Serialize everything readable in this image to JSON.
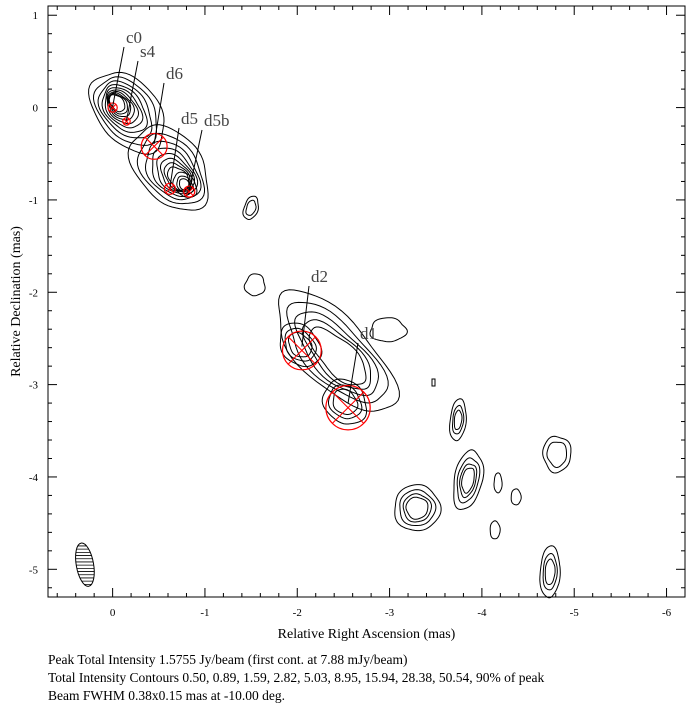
{
  "chart_data": {
    "type": "contour",
    "title": "",
    "xlabel": "Relative Right Ascension (mas)",
    "ylabel": "Relative Declination (mas)",
    "xlim": [
      0.7,
      -6.2
    ],
    "ylim": [
      -5.3,
      1.1
    ],
    "x_ticks": [
      0,
      -1,
      -2,
      -3,
      -4,
      -5,
      -6
    ],
    "y_ticks": [
      1,
      0,
      -1,
      -2,
      -3,
      -4,
      -5
    ],
    "components": [
      {
        "label": "c0",
        "x": 0.0,
        "y": 0.0,
        "r": 0.05
      },
      {
        "label": "s4",
        "x": -0.15,
        "y": -0.15,
        "r": 0.04
      },
      {
        "label": "d6",
        "x": -0.45,
        "y": -0.42,
        "r": 0.14
      },
      {
        "label": "d5",
        "x": -0.62,
        "y": -0.88,
        "r": 0.06
      },
      {
        "label": "d5b",
        "x": -0.83,
        "y": -0.91,
        "r": 0.06
      },
      {
        "label": "d2",
        "x": -2.05,
        "y": -2.63,
        "r": 0.21
      },
      {
        "label": "d1",
        "x": -2.55,
        "y": -3.25,
        "r": 0.24
      }
    ],
    "beam": {
      "major": 0.38,
      "minor": 0.15,
      "pa": -10.0
    },
    "caption_lines": [
      "Peak Total Intensity 1.5755 Jy/beam (first cont. at 7.88 mJy/beam)",
      "Total Intensity Contours 0.50, 0.89, 1.59, 2.82, 5.03, 8.95, 15.94, 28.38, 50.54, 90% of peak",
      "Beam FWHM 0.38x0.15 mas at -10.00 deg."
    ],
    "contour_color": "#000000",
    "component_color": "#ff0000"
  }
}
